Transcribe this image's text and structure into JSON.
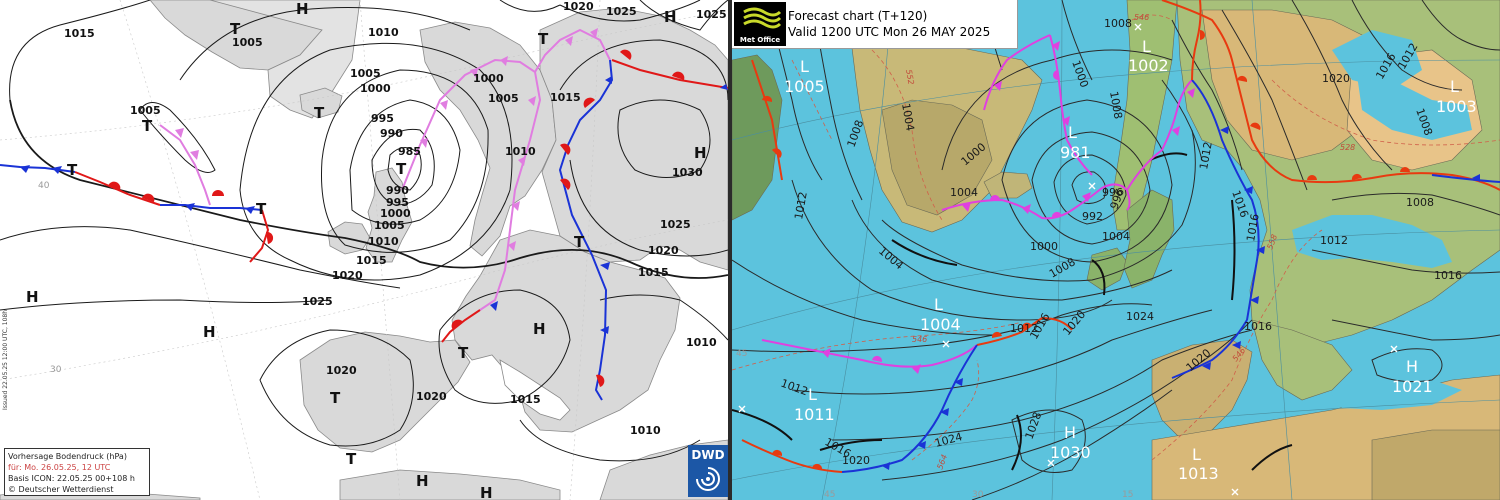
{
  "left_chart": {
    "isobar_labels": [
      "1015",
      "1005",
      "1010",
      "1005",
      "1000",
      "1020",
      "1025",
      "1025",
      "1005",
      "1000",
      "1005",
      "995",
      "990",
      "985",
      "990",
      "995",
      "1000",
      "1005",
      "1010",
      "1015",
      "1015",
      "1010",
      "1030",
      "1025",
      "1020",
      "1015",
      "1020",
      "1025",
      "1010",
      "1020",
      "1020",
      "1015",
      "1010"
    ],
    "systems": [
      "H",
      "T",
      "T",
      "T",
      "T",
      "T",
      "T",
      "T",
      "H",
      "H",
      "H",
      "T",
      "H",
      "T",
      "T",
      "H",
      "H",
      "H",
      "T"
    ],
    "grid_labels": [
      "40",
      "30"
    ],
    "legend_lines": [
      "Vorhersage Bodendruck (hPa)",
      "für: Mo. 26.05.25, 12 UTC",
      "Basis ICON: 22.05.25 00+108 h",
      "© Deutscher Wetterdienst"
    ],
    "logo_text": "DWD",
    "side_text": "Issued 22.05.25 12:00 UTC, 108h",
    "colors": {
      "cold_front": "#1a33d6",
      "warm_front": "#e01818",
      "occlusion": "#e07de0",
      "land": "#d9d9d9",
      "isobar": "#1a1a1a"
    }
  },
  "right_chart": {
    "title": "Forecast chart (T+120)",
    "valid": "Valid 1200 UTC Mon 26 MAY 2025",
    "logo_text": "Met Office",
    "systems": [
      {
        "type": "L",
        "value": "1005"
      },
      {
        "type": "L",
        "value": "1002"
      },
      {
        "type": "L",
        "value": "1003"
      },
      {
        "type": "L",
        "value": "981"
      },
      {
        "type": "L",
        "value": "1004"
      },
      {
        "type": "L",
        "value": "1011"
      },
      {
        "type": "H",
        "value": "1030"
      },
      {
        "type": "H",
        "value": "1021"
      },
      {
        "type": "L",
        "value": "1013"
      }
    ],
    "isobar_labels": [
      "1004",
      "1000",
      "1008",
      "1012",
      "1004",
      "1008",
      "1008",
      "1012",
      "1016",
      "1020",
      "1016",
      "1012",
      "1016",
      "1008",
      "1012",
      "1016",
      "996",
      "1000",
      "1004",
      "1008",
      "992",
      "996",
      "1000",
      "1004",
      "1008",
      "1012",
      "1016",
      "1020",
      "1024",
      "1028",
      "1024",
      "1020",
      "1016",
      "1020",
      "1016",
      "1012"
    ],
    "thickness_labels": [
      "552",
      "546",
      "528",
      "546",
      "546",
      "564",
      "558"
    ],
    "grid_labels": [
      "45",
      "30",
      "15"
    ],
    "colors": {
      "sea": "#5cc3dd",
      "land": "#c8b978",
      "cold_front": "#1a33d6",
      "warm_front": "#e83a10",
      "occlusion": "#e040e0"
    }
  }
}
